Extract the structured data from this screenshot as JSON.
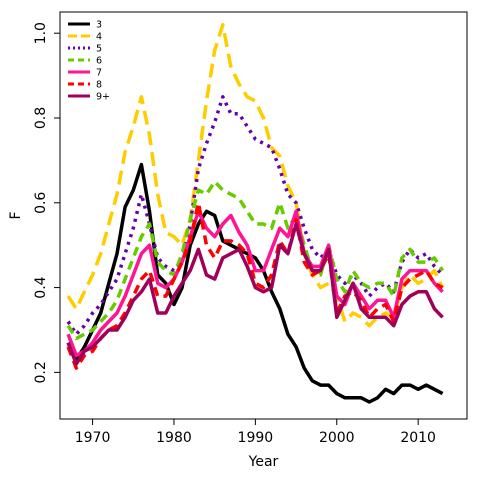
{
  "chart_data": {
    "type": "line",
    "title": "",
    "xlabel": "Year",
    "ylabel": "F",
    "xlim": [
      1966,
      2016
    ],
    "ylim": [
      0.09,
      1.05
    ],
    "xticks": [
      "1970",
      "1980",
      "1990",
      "2000",
      "2010"
    ],
    "yticks": [
      "0.2",
      "0.4",
      "0.6",
      "0.8",
      "1.0"
    ],
    "grid": false,
    "legend_position": "top-left",
    "x": [
      1967,
      1968,
      1969,
      1970,
      1971,
      1972,
      1973,
      1974,
      1975,
      1976,
      1977,
      1978,
      1979,
      1980,
      1981,
      1982,
      1983,
      1984,
      1985,
      1986,
      1987,
      1988,
      1989,
      1990,
      1991,
      1992,
      1993,
      1994,
      1995,
      1996,
      1997,
      1998,
      1999,
      2000,
      2001,
      2002,
      2003,
      2004,
      2005,
      2006,
      2007,
      2008,
      2009,
      2010,
      2011,
      2012,
      2013
    ],
    "series": [
      {
        "name": "3",
        "color": "#000000",
        "dash": "solid",
        "values": [
          0.27,
          0.23,
          0.26,
          0.3,
          0.34,
          0.41,
          0.48,
          0.59,
          0.63,
          0.69,
          0.58,
          0.43,
          0.41,
          0.36,
          0.4,
          0.5,
          0.55,
          0.58,
          0.57,
          0.51,
          0.5,
          0.49,
          0.48,
          0.47,
          0.44,
          0.39,
          0.35,
          0.29,
          0.26,
          0.21,
          0.18,
          0.17,
          0.17,
          0.15,
          0.14,
          0.14,
          0.14,
          0.13,
          0.14,
          0.16,
          0.15,
          0.17,
          0.17,
          0.16,
          0.17,
          0.16,
          0.15
        ]
      },
      {
        "name": "4",
        "color": "#ffcc00",
        "dash": "long",
        "values": [
          0.38,
          0.35,
          0.39,
          0.43,
          0.48,
          0.55,
          0.62,
          0.72,
          0.78,
          0.85,
          0.76,
          0.62,
          0.53,
          0.52,
          0.5,
          0.56,
          0.7,
          0.84,
          0.96,
          1.02,
          0.92,
          0.88,
          0.85,
          0.84,
          0.8,
          0.73,
          0.71,
          0.64,
          0.6,
          0.48,
          0.43,
          0.4,
          0.41,
          0.38,
          0.32,
          0.34,
          0.33,
          0.31,
          0.33,
          0.34,
          0.33,
          0.4,
          0.43,
          0.41,
          0.42,
          0.44,
          0.4
        ]
      },
      {
        "name": "5",
        "color": "#6600aa",
        "dash": "dot",
        "values": [
          0.32,
          0.29,
          0.31,
          0.34,
          0.36,
          0.39,
          0.42,
          0.48,
          0.54,
          0.62,
          0.55,
          0.47,
          0.45,
          0.44,
          0.46,
          0.55,
          0.68,
          0.74,
          0.79,
          0.85,
          0.81,
          0.81,
          0.78,
          0.75,
          0.74,
          0.73,
          0.68,
          0.62,
          0.6,
          0.54,
          0.49,
          0.47,
          0.49,
          0.43,
          0.41,
          0.43,
          0.41,
          0.38,
          0.4,
          0.41,
          0.39,
          0.46,
          0.49,
          0.47,
          0.48,
          0.45,
          0.43
        ]
      },
      {
        "name": "6",
        "color": "#66cc00",
        "dash": "dash",
        "values": [
          0.31,
          0.28,
          0.29,
          0.3,
          0.32,
          0.34,
          0.37,
          0.42,
          0.47,
          0.52,
          0.55,
          0.46,
          0.44,
          0.43,
          0.48,
          0.56,
          0.63,
          0.62,
          0.65,
          0.63,
          0.62,
          0.61,
          0.58,
          0.55,
          0.55,
          0.54,
          0.6,
          0.54,
          0.57,
          0.5,
          0.44,
          0.43,
          0.5,
          0.42,
          0.39,
          0.44,
          0.41,
          0.4,
          0.41,
          0.41,
          0.38,
          0.47,
          0.49,
          0.46,
          0.46,
          0.47,
          0.44
        ]
      },
      {
        "name": "7",
        "color": "#ff1493",
        "dash": "solid",
        "values": [
          0.29,
          0.24,
          0.25,
          0.27,
          0.3,
          0.32,
          0.34,
          0.38,
          0.43,
          0.48,
          0.5,
          0.41,
          0.4,
          0.42,
          0.46,
          0.52,
          0.58,
          0.54,
          0.52,
          0.55,
          0.57,
          0.53,
          0.5,
          0.44,
          0.44,
          0.49,
          0.54,
          0.52,
          0.58,
          0.48,
          0.45,
          0.45,
          0.5,
          0.38,
          0.36,
          0.41,
          0.38,
          0.35,
          0.37,
          0.37,
          0.33,
          0.42,
          0.44,
          0.44,
          0.44,
          0.41,
          0.39
        ]
      },
      {
        "name": "8",
        "color": "#ff0000",
        "dash": "dash",
        "values": [
          0.26,
          0.21,
          0.24,
          0.25,
          0.28,
          0.3,
          0.31,
          0.34,
          0.38,
          0.42,
          0.44,
          0.38,
          0.38,
          0.42,
          0.46,
          0.51,
          0.6,
          0.5,
          0.47,
          0.51,
          0.51,
          0.5,
          0.48,
          0.41,
          0.4,
          0.43,
          0.51,
          0.48,
          0.56,
          0.46,
          0.43,
          0.44,
          0.48,
          0.34,
          0.38,
          0.39,
          0.37,
          0.33,
          0.35,
          0.36,
          0.32,
          0.4,
          0.42,
          0.43,
          0.44,
          0.41,
          0.4
        ]
      },
      {
        "name": "9+",
        "color": "#a0005a",
        "dash": "solid",
        "values": [
          0.27,
          0.22,
          0.25,
          0.26,
          0.28,
          0.3,
          0.3,
          0.33,
          0.37,
          0.39,
          0.42,
          0.34,
          0.34,
          0.38,
          0.41,
          0.44,
          0.49,
          0.43,
          0.42,
          0.47,
          0.48,
          0.49,
          0.45,
          0.4,
          0.39,
          0.4,
          0.5,
          0.48,
          0.55,
          0.48,
          0.44,
          0.44,
          0.49,
          0.33,
          0.37,
          0.41,
          0.35,
          0.33,
          0.33,
          0.33,
          0.31,
          0.36,
          0.38,
          0.39,
          0.39,
          0.35,
          0.33
        ]
      }
    ]
  }
}
